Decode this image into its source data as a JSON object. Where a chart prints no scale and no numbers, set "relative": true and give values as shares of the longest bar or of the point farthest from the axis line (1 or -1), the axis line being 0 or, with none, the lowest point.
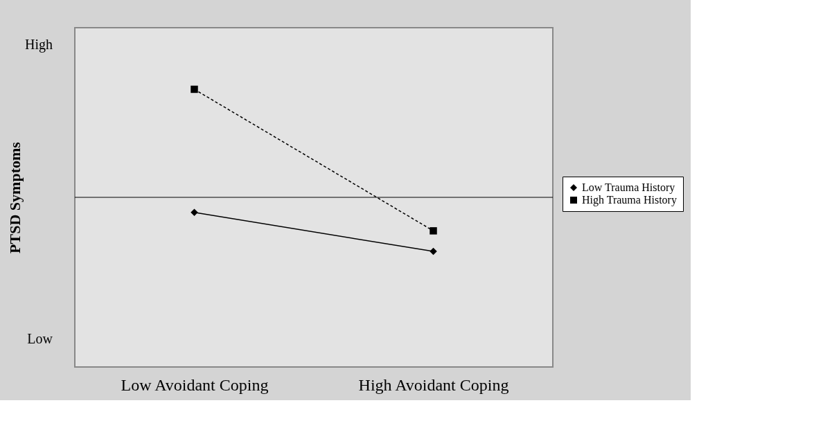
{
  "chart_data": {
    "type": "line",
    "relative": true,
    "ylabel": "PTSD Symptoms",
    "categories": [
      "Low Avoidant Coping",
      "High Avoidant Coping"
    ],
    "annotations": [
      "High",
      "Low"
    ],
    "series": [
      {
        "name": "Low Trauma History",
        "color": "#000000",
        "values": [
          -0.14,
          -0.5
        ],
        "marker": "diamond",
        "line_style": "solid"
      },
      {
        "name": "High Trauma History",
        "color": "#000000",
        "values": [
          1,
          -0.31
        ],
        "marker": "square",
        "line_style": "dashed"
      }
    ],
    "legend": "right",
    "grid": false
  }
}
